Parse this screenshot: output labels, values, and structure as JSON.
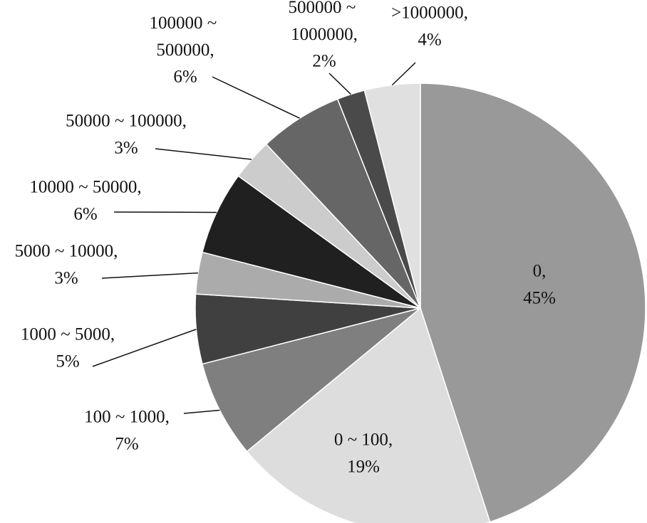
{
  "chart_data": {
    "type": "pie",
    "categories": [
      "0,",
      "0 ~ 100,",
      "100 ~ 1000,",
      "1000 ~ 5000,",
      "5000 ~ 10000,",
      "10000 ~ 50000,",
      "50000 ~ 100000,",
      "100000 ~ 500000,",
      "500000 ~ 1000000,",
      ">1000000,"
    ],
    "values": [
      45,
      19,
      7,
      5,
      3,
      6,
      3,
      6,
      2,
      4
    ],
    "value_labels": [
      "45%",
      "19%",
      "7%",
      "5%",
      "3%",
      "6%",
      "3%",
      "6%",
      "2%",
      "4%"
    ],
    "colors": [
      "#999999",
      "#dddddd",
      "#7f7f7f",
      "#404040",
      "#ababab",
      "#202020",
      "#cccccc",
      "#666666",
      "#4a4a4a",
      "#e0e0e0"
    ]
  }
}
